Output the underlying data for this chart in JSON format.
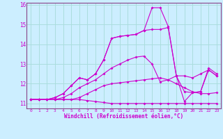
{
  "xlabel": "Windchill (Refroidissement éolien,°C)",
  "bg_color": "#cceeff",
  "grid_color": "#aadddd",
  "line_color": "#cc00cc",
  "spine_color": "#884488",
  "xlim": [
    -0.5,
    23.5
  ],
  "ylim": [
    10.75,
    16.1
  ],
  "xticks": [
    0,
    1,
    2,
    3,
    4,
    5,
    6,
    7,
    8,
    9,
    10,
    11,
    12,
    13,
    14,
    15,
    16,
    17,
    18,
    19,
    20,
    21,
    22,
    23
  ],
  "yticks": [
    11,
    12,
    13,
    14,
    15,
    16
  ],
  "series": [
    [
      11.2,
      11.2,
      11.2,
      11.2,
      11.2,
      11.2,
      11.2,
      11.15,
      11.1,
      11.05,
      11.0,
      11.0,
      11.0,
      11.0,
      11.0,
      11.0,
      11.0,
      11.0,
      11.0,
      11.0,
      11.0,
      11.0,
      11.0,
      11.0
    ],
    [
      11.2,
      11.2,
      11.2,
      11.2,
      11.2,
      11.2,
      11.3,
      11.5,
      11.7,
      11.9,
      12.0,
      12.05,
      12.1,
      12.15,
      12.2,
      12.25,
      12.3,
      12.2,
      12.0,
      11.8,
      11.6,
      11.5,
      11.5,
      11.55
    ],
    [
      11.2,
      11.2,
      11.2,
      11.2,
      11.3,
      11.5,
      11.8,
      12.0,
      12.2,
      12.5,
      12.8,
      13.0,
      13.2,
      13.35,
      13.4,
      13.0,
      12.1,
      12.2,
      12.4,
      12.4,
      12.3,
      12.5,
      12.7,
      12.4
    ],
    [
      11.2,
      11.2,
      11.2,
      11.3,
      11.5,
      11.9,
      12.3,
      12.2,
      12.5,
      13.2,
      14.3,
      14.4,
      14.45,
      14.5,
      14.7,
      14.75,
      14.75,
      14.85,
      12.4,
      11.6,
      11.55,
      11.6,
      12.7,
      12.4
    ],
    [
      11.2,
      11.2,
      11.2,
      11.3,
      11.5,
      11.9,
      12.3,
      12.2,
      12.5,
      13.2,
      14.3,
      14.4,
      14.45,
      14.5,
      14.7,
      15.85,
      15.85,
      14.9,
      12.4,
      11.1,
      11.55,
      11.6,
      12.8,
      12.5
    ]
  ]
}
